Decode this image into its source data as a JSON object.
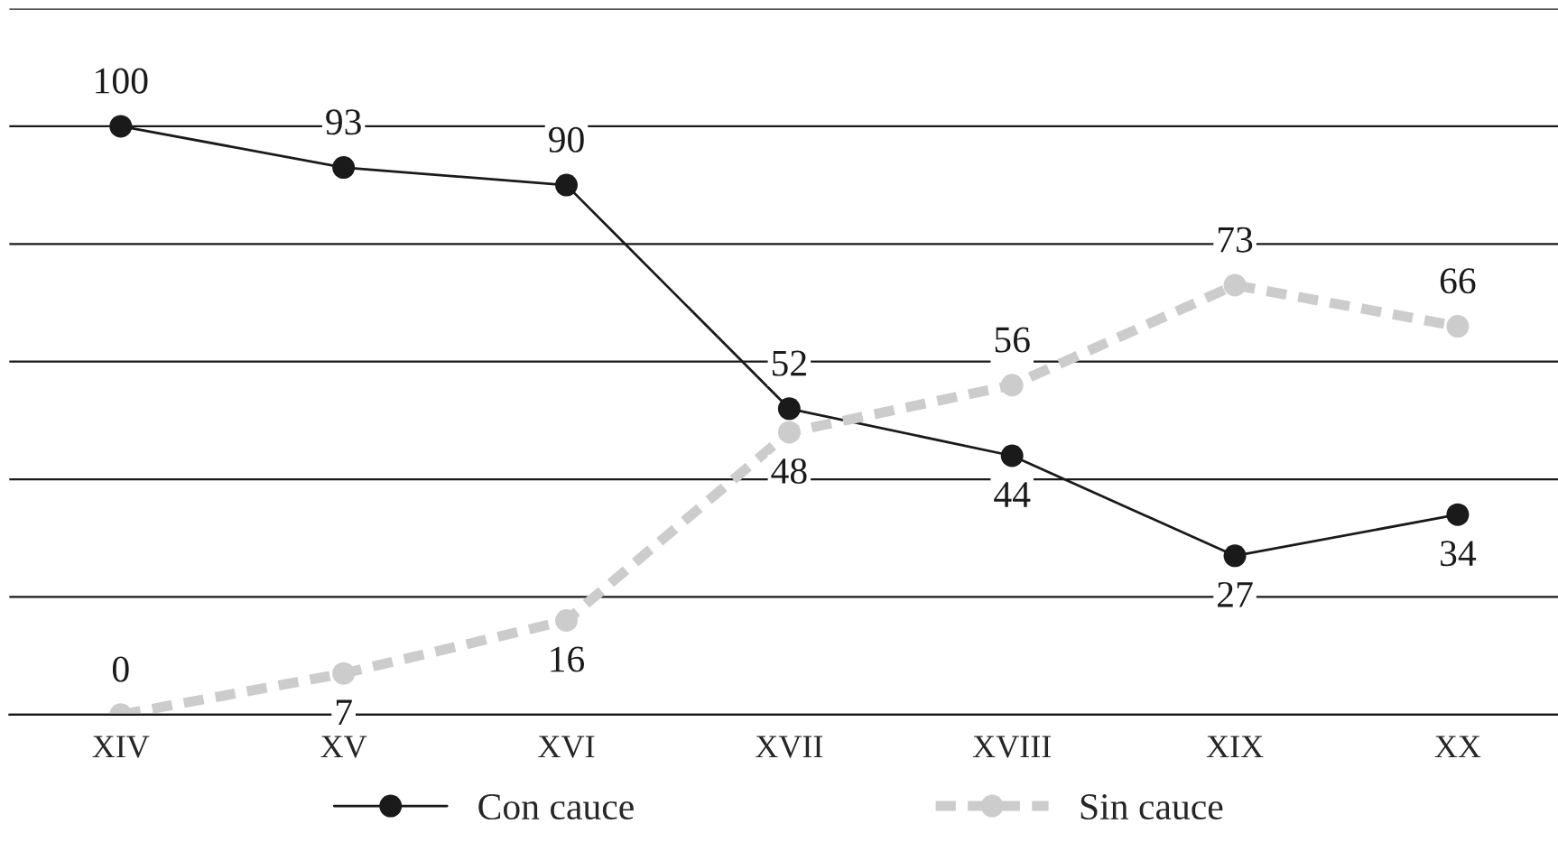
{
  "chart_data": {
    "type": "line",
    "categories": [
      "XIV",
      "XV",
      "XVI",
      "XVII",
      "XVIII",
      "XIX",
      "XX"
    ],
    "series": [
      {
        "name": "Con cauce",
        "color": "#1a1a1a",
        "values": [
          100,
          93,
          90,
          52,
          44,
          27,
          34
        ],
        "line_style": "solid"
      },
      {
        "name": "Sin cauce",
        "color": "#cccccc",
        "values": [
          0,
          7,
          16,
          48,
          56,
          73,
          66
        ],
        "line_style": "dashed"
      }
    ],
    "ylim": [
      0,
      120
    ],
    "yticks": [
      {
        "value": 0,
        "label": null
      },
      {
        "value": 20,
        "label": null
      },
      {
        "value": 40,
        "label": null
      },
      {
        "value": 60,
        "label": null
      },
      {
        "value": 80,
        "label": null
      },
      {
        "value": 100,
        "label": null
      },
      {
        "value": 120,
        "label": null
      }
    ],
    "grid": "y",
    "tick_labels": "x",
    "marker": "circle",
    "data_labels": true,
    "legend": "bottom"
  }
}
